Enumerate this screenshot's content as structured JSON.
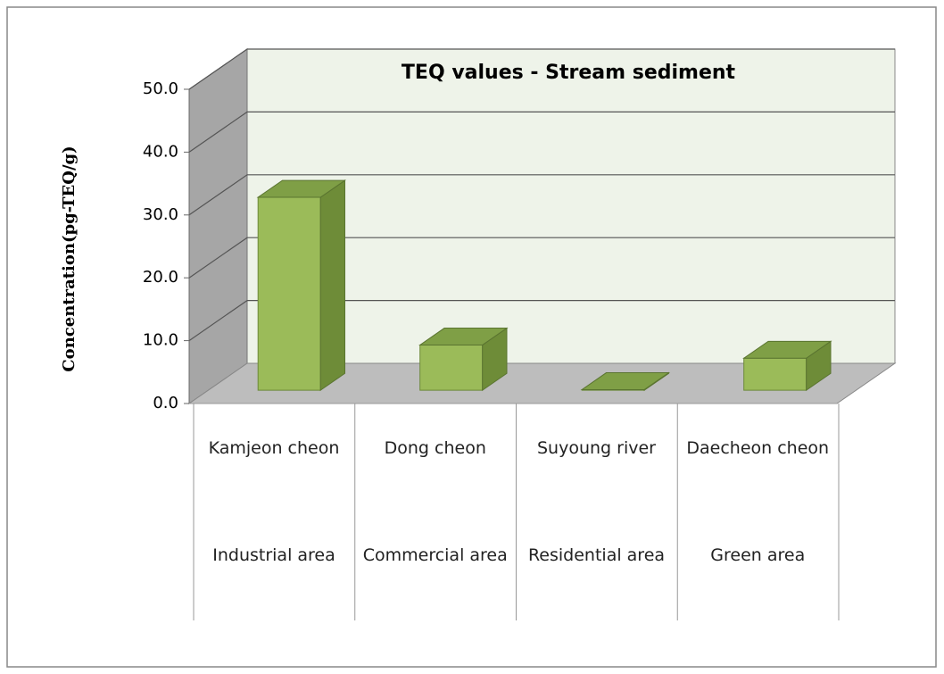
{
  "chart_data": {
    "type": "bar3d",
    "title": "TEQ values - Stream sediment",
    "y_label": "Concentration(pg-TEQ/g)",
    "categories": [
      "Kamjeon cheon",
      "Dong cheon",
      "Suyoung river",
      "Daecheon cheon"
    ],
    "groups": [
      "Industrial area",
      "Commercial area",
      "Residential area",
      "Green area"
    ],
    "values": [
      30.7,
      7.2,
      0.1,
      5.1
    ],
    "color": "#9bbb59",
    "ylim": [
      0,
      50
    ],
    "yticks": [
      {
        "value": 0,
        "label": "0.0"
      },
      {
        "value": 10,
        "label": "10.0"
      },
      {
        "value": 20,
        "label": "20.0"
      },
      {
        "value": 30,
        "label": "30.0"
      },
      {
        "value": 40,
        "label": "40.0"
      },
      {
        "value": 50,
        "label": "50.0"
      }
    ],
    "grid": true
  }
}
